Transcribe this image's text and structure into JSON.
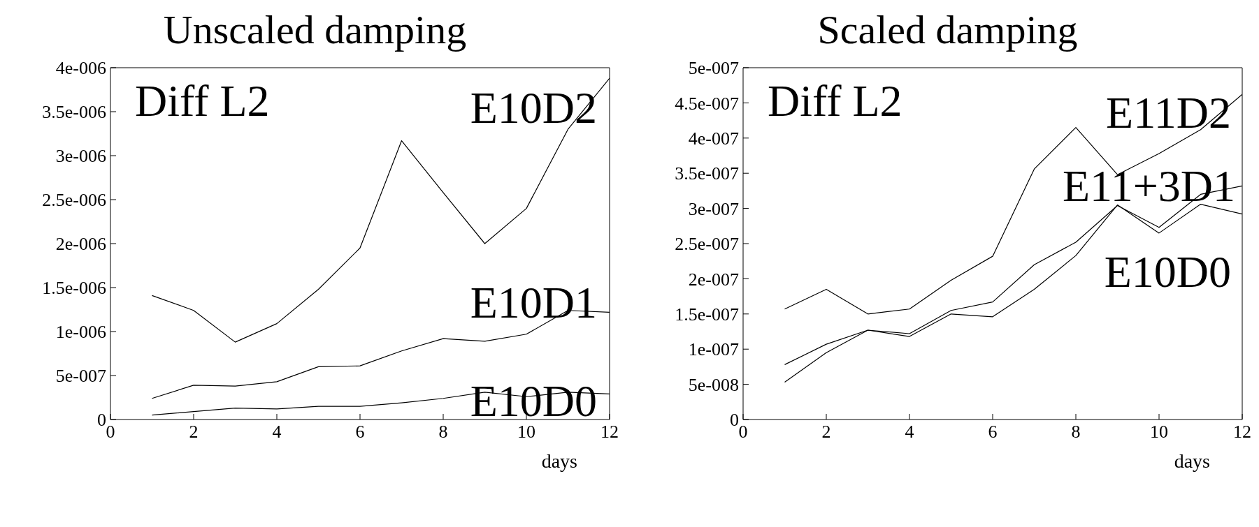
{
  "chart_data": [
    {
      "type": "line",
      "title": "Unscaled damping",
      "xlabel": "days",
      "annotations": [
        "Diff L2"
      ],
      "x": [
        1,
        2,
        3,
        4,
        5,
        6,
        7,
        8,
        9,
        10,
        11,
        12
      ],
      "series": [
        {
          "name": "E10D2",
          "color": "#000000",
          "values": [
            1.41e-06,
            1.24e-06,
            8.8e-07,
            1.09e-06,
            1.48e-06,
            1.95e-06,
            3.17e-06,
            2.58e-06,
            2e-06,
            2.4e-06,
            3.3e-06,
            3.88e-06
          ]
        },
        {
          "name": "E10D1",
          "color": "#000000",
          "values": [
            2.4e-07,
            3.9e-07,
            3.8e-07,
            4.3e-07,
            6e-07,
            6.1e-07,
            7.8e-07,
            9.2e-07,
            8.9e-07,
            9.7e-07,
            1.24e-06,
            1.22e-06
          ]
        },
        {
          "name": "E10D0",
          "color": "#000000",
          "values": [
            5e-08,
            9e-08,
            1.3e-07,
            1.2e-07,
            1.5e-07,
            1.5e-07,
            1.9e-07,
            2.4e-07,
            3.1e-07,
            2.6e-07,
            3.1e-07,
            2.9e-07
          ]
        }
      ],
      "xlim": [
        0,
        12
      ],
      "xticks": [
        0,
        2,
        4,
        6,
        8,
        10,
        12
      ],
      "ylim": [
        0,
        4e-06
      ],
      "yticks": [
        {
          "value": 0,
          "label": "0"
        },
        {
          "value": 5e-07,
          "label": "5e-007"
        },
        {
          "value": 1e-06,
          "label": "1e-006"
        },
        {
          "value": 1.5e-06,
          "label": "1.5e-006"
        },
        {
          "value": 2e-06,
          "label": "2e-006"
        },
        {
          "value": 2.5e-06,
          "label": "2.5e-006"
        },
        {
          "value": 3e-06,
          "label": "3e-006"
        },
        {
          "value": 3.5e-06,
          "label": "3.5e-006"
        },
        {
          "value": 4e-06,
          "label": "4e-006"
        }
      ],
      "grid": false,
      "legend": false,
      "marker": "none",
      "line_style": "solid"
    },
    {
      "type": "line",
      "title": "Scaled damping",
      "xlabel": "days",
      "annotations": [
        "Diff L2"
      ],
      "x": [
        1,
        2,
        3,
        4,
        5,
        6,
        7,
        8,
        9,
        10,
        11,
        12
      ],
      "series": [
        {
          "name": "E11D2",
          "color": "#000000",
          "values": [
            1.57e-07,
            1.85e-07,
            1.5e-07,
            1.57e-07,
            1.98e-07,
            2.32e-07,
            3.56e-07,
            4.15e-07,
            3.48e-07,
            3.78e-07,
            4.12e-07,
            4.62e-07
          ]
        },
        {
          "name": "E11+3D1",
          "color": "#000000",
          "values": [
            7.8e-08,
            1.07e-07,
            1.27e-07,
            1.22e-07,
            1.55e-07,
            1.67e-07,
            2.2e-07,
            2.52e-07,
            3.04e-07,
            2.73e-07,
            3.2e-07,
            3.32e-07
          ]
        },
        {
          "name": "E10D0",
          "color": "#000000",
          "values": [
            5.3e-08,
            9.5e-08,
            1.27e-07,
            1.18e-07,
            1.5e-07,
            1.46e-07,
            1.85e-07,
            2.33e-07,
            3.05e-07,
            2.65e-07,
            3.06e-07,
            2.92e-07
          ]
        }
      ],
      "xlim": [
        0,
        12
      ],
      "xticks": [
        0,
        2,
        4,
        6,
        8,
        10,
        12
      ],
      "ylim": [
        0,
        5e-07
      ],
      "yticks": [
        {
          "value": 0,
          "label": "0"
        },
        {
          "value": 5e-08,
          "label": "5e-008"
        },
        {
          "value": 1e-07,
          "label": "1e-007"
        },
        {
          "value": 1.5e-07,
          "label": "1.5e-007"
        },
        {
          "value": 2e-07,
          "label": "2e-007"
        },
        {
          "value": 2.5e-07,
          "label": "2.5e-007"
        },
        {
          "value": 3e-07,
          "label": "3e-007"
        },
        {
          "value": 3.5e-07,
          "label": "3.5e-007"
        },
        {
          "value": 4e-07,
          "label": "4e-007"
        },
        {
          "value": 4.5e-07,
          "label": "4.5e-007"
        },
        {
          "value": 5e-07,
          "label": "5e-007"
        }
      ],
      "grid": false,
      "legend": false,
      "marker": "none",
      "line_style": "solid"
    }
  ]
}
